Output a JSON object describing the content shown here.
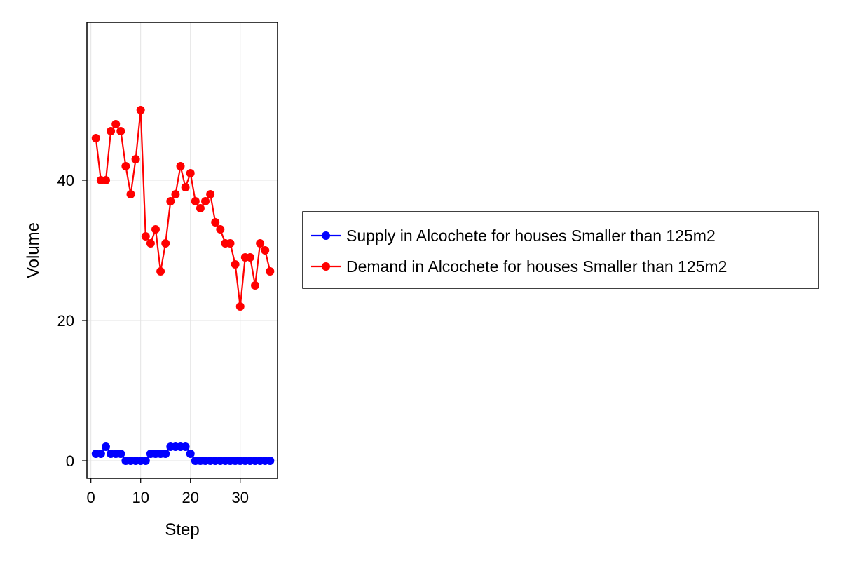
{
  "chart_data": {
    "type": "line",
    "title": "",
    "xlabel": "Step",
    "ylabel": "Volume",
    "xlim": [
      -0.8,
      37.5
    ],
    "ylim": [
      -2.5,
      62.5
    ],
    "xticks": [
      0,
      10,
      20,
      30
    ],
    "yticks": [
      0,
      20,
      40
    ],
    "grid": true,
    "legend_position": "right",
    "x": [
      1,
      2,
      3,
      4,
      5,
      6,
      7,
      8,
      9,
      10,
      11,
      12,
      13,
      14,
      15,
      16,
      17,
      18,
      19,
      20,
      21,
      22,
      23,
      24,
      25,
      26,
      27,
      28,
      29,
      30,
      31,
      32,
      33,
      34,
      35,
      36
    ],
    "series": [
      {
        "name": "Supply in Alcochete for houses Smaller than 125m2",
        "color": "#0000ff",
        "values": [
          1,
          1,
          2,
          1,
          1,
          1,
          0,
          0,
          0,
          0,
          0,
          1,
          1,
          1,
          1,
          2,
          2,
          2,
          2,
          1,
          0,
          0,
          0,
          0,
          0,
          0,
          0,
          0,
          0,
          0,
          0,
          0,
          0,
          0,
          0,
          0
        ]
      },
      {
        "name": "Demand in Alcochete for houses Smaller than 125m2",
        "color": "#ff0000",
        "values": [
          46,
          40,
          40,
          47,
          48,
          47,
          42,
          38,
          43,
          50,
          32,
          31,
          33,
          27,
          31,
          37,
          38,
          42,
          39,
          41,
          37,
          36,
          37,
          38,
          34,
          33,
          31,
          31,
          28,
          22,
          29,
          29,
          25,
          31,
          30,
          27
        ]
      }
    ]
  }
}
